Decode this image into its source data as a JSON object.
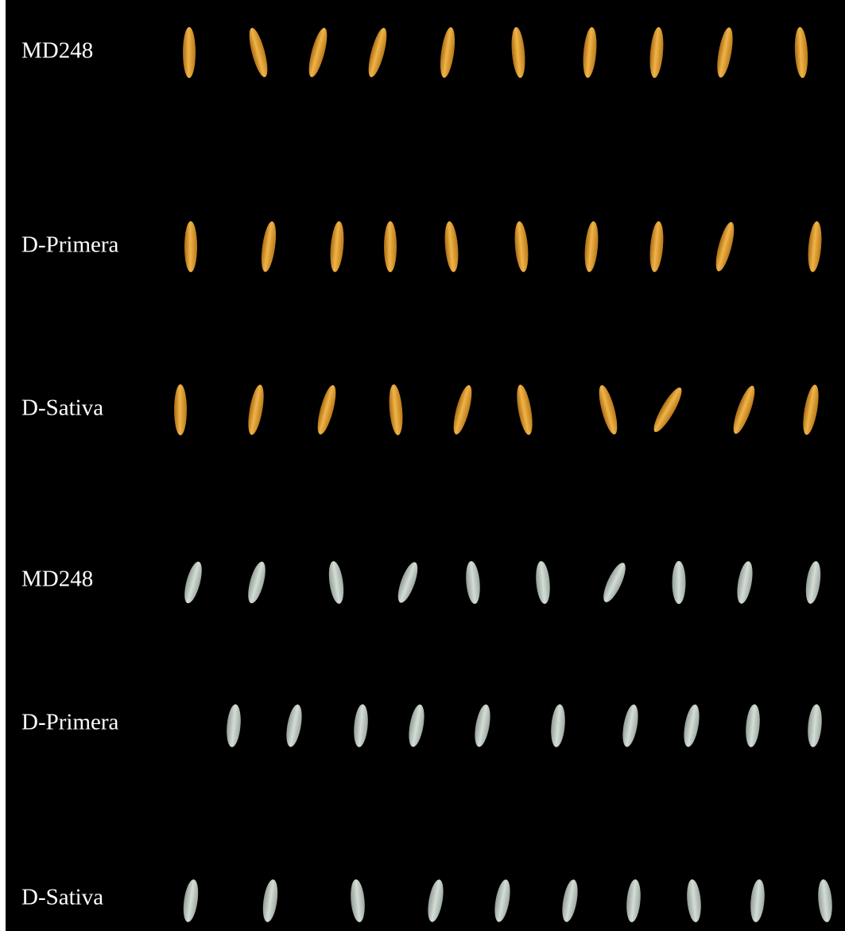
{
  "rows": [
    {
      "label": "MD248"
    },
    {
      "label": "D-Primera"
    },
    {
      "label": "D-Sativa"
    },
    {
      "label": "MD248"
    },
    {
      "label": "D-Primera"
    },
    {
      "label": "D-Sativa"
    }
  ]
}
